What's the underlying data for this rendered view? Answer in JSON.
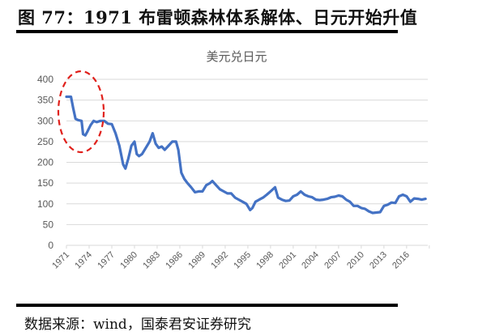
{
  "figure": {
    "title": "图 77：1971 布雷顿森林体系解体、日元开始升值",
    "source": "数据来源：wind，国泰君安证券研究"
  },
  "colors": {
    "line": "#4472C4",
    "annotation_ellipse": "#E0201B",
    "gridline": "#D9D9D9",
    "axis_text": "#595959",
    "rule": "#000000"
  },
  "annotation": {
    "type": "dashed-ellipse",
    "highlights": "1971-1976 (Bretton Woods collapse period)"
  },
  "chart_data": {
    "type": "line",
    "title": "美元兑日元",
    "xlabel": "",
    "ylabel": "",
    "ylim": [
      0,
      400
    ],
    "yticks": [
      0,
      50,
      100,
      150,
      200,
      250,
      300,
      350,
      400
    ],
    "xticks": [
      "1971",
      "1974",
      "1977",
      "1980",
      "1983",
      "1986",
      "1989",
      "1992",
      "1995",
      "1998",
      "2001",
      "2004",
      "2007",
      "2010",
      "2013",
      "2016"
    ],
    "grid": true,
    "legend": null,
    "series": [
      {
        "name": "美元兑日元",
        "x": [
          1971.0,
          1971.6,
          1971.9,
          1972.2,
          1972.5,
          1973.0,
          1973.2,
          1973.5,
          1973.8,
          1974.2,
          1974.6,
          1975.0,
          1975.5,
          1976.0,
          1976.5,
          1977.0,
          1977.5,
          1978.0,
          1978.5,
          1978.8,
          1979.2,
          1979.6,
          1980.0,
          1980.3,
          1980.6,
          1981.0,
          1981.5,
          1982.0,
          1982.4,
          1982.8,
          1983.2,
          1983.6,
          1984.0,
          1984.5,
          1985.0,
          1985.5,
          1985.8,
          1986.2,
          1986.6,
          1987.0,
          1987.5,
          1988.0,
          1988.5,
          1989.0,
          1989.5,
          1990.0,
          1990.3,
          1990.8,
          1991.3,
          1991.8,
          1992.3,
          1992.8,
          1993.3,
          1993.8,
          1994.3,
          1994.8,
          1995.3,
          1995.6,
          1996.0,
          1996.5,
          1997.0,
          1997.5,
          1998.0,
          1998.6,
          1999.0,
          1999.5,
          2000.0,
          2000.5,
          2001.0,
          2001.5,
          2002.0,
          2002.5,
          2003.0,
          2003.5,
          2004.0,
          2004.5,
          2005.0,
          2005.5,
          2006.0,
          2006.5,
          2007.0,
          2007.5,
          2008.0,
          2008.5,
          2009.0,
          2009.5,
          2010.0,
          2010.5,
          2011.0,
          2011.5,
          2012.0,
          2012.5,
          2013.0,
          2013.5,
          2014.0,
          2014.5,
          2015.0,
          2015.5,
          2016.0,
          2016.5,
          2017.0,
          2017.5,
          2018.0,
          2018.5
        ],
        "values": [
          358,
          358,
          330,
          305,
          302,
          300,
          268,
          265,
          275,
          290,
          300,
          297,
          300,
          300,
          293,
          292,
          270,
          240,
          195,
          185,
          210,
          240,
          250,
          220,
          215,
          220,
          235,
          250,
          270,
          245,
          235,
          238,
          230,
          240,
          250,
          250,
          230,
          175,
          160,
          150,
          140,
          128,
          130,
          130,
          145,
          150,
          155,
          145,
          135,
          130,
          125,
          125,
          115,
          110,
          105,
          100,
          85,
          90,
          105,
          110,
          115,
          122,
          130,
          140,
          115,
          110,
          107,
          108,
          118,
          122,
          130,
          122,
          118,
          116,
          110,
          109,
          110,
          112,
          116,
          117,
          120,
          118,
          110,
          105,
          95,
          95,
          90,
          88,
          82,
          78,
          79,
          80,
          95,
          98,
          103,
          102,
          118,
          122,
          118,
          105,
          113,
          112,
          110,
          112
        ]
      }
    ]
  }
}
